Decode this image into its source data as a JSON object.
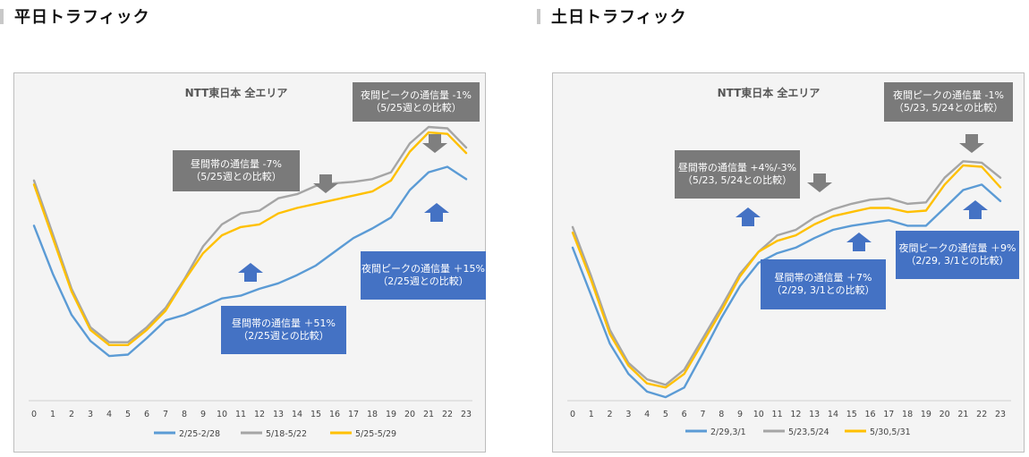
{
  "sections": [
    {
      "title": "平日トラフィック"
    },
    {
      "title": "土日トラフィック"
    }
  ],
  "colors": {
    "blue": "#5b9bd5",
    "gray": "#a5a5a5",
    "yellow": "#ffc000",
    "callout_gray": "#7a7a7a",
    "callout_blue": "#4472c4",
    "arrow_gray": "#7f7f7f",
    "arrow_blue": "#4472c4"
  },
  "chart_data": [
    {
      "type": "line",
      "title": "NTT東日本 全エリア",
      "x": [
        0,
        1,
        2,
        3,
        4,
        5,
        6,
        7,
        8,
        9,
        10,
        11,
        12,
        13,
        14,
        15,
        16,
        17,
        18,
        19,
        20,
        21,
        22,
        23
      ],
      "series": [
        {
          "name": "2/25-2/28",
          "values": [
            78,
            43,
            13,
            -6,
            -17,
            -16,
            -4,
            9,
            13,
            19,
            25,
            27,
            32,
            36,
            42,
            49,
            59,
            69,
            76,
            84,
            104,
            117,
            121,
            112
          ]
        },
        {
          "name": "5/18-5/22",
          "values": [
            111,
            72,
            32,
            4,
            -7,
            -7,
            4,
            18,
            39,
            63,
            79,
            87,
            89,
            98,
            101,
            107,
            109,
            110,
            112,
            117,
            138,
            150,
            149,
            135
          ]
        },
        {
          "name": "5/25-5/29",
          "values": [
            108,
            69,
            30,
            2,
            -9,
            -9,
            2,
            16,
            38,
            58,
            71,
            77,
            79,
            87,
            91,
            94,
            97,
            100,
            103,
            111,
            132,
            146,
            145,
            131
          ]
        }
      ],
      "callouts": [
        {
          "kind": "gray",
          "line1": "夜間ピークの通信量 -1%",
          "line2": "（5/25週との比較）"
        },
        {
          "kind": "gray",
          "line1": "昼間帯の通信量 -7%",
          "line2": "（5/25週との比較）"
        },
        {
          "kind": "blue",
          "line1": "夜間ピークの通信量 ＋15%",
          "line2": "（2/25週との比較）"
        },
        {
          "kind": "blue",
          "line1": "昼間帯の通信量 ＋51%",
          "line2": "（2/25週との比較）"
        }
      ]
    },
    {
      "type": "line",
      "title": "NTT東日本 全エリア",
      "x": [
        0,
        1,
        2,
        3,
        4,
        5,
        6,
        7,
        8,
        9,
        10,
        11,
        12,
        13,
        14,
        15,
        16,
        17,
        18,
        19,
        20,
        21,
        22,
        23
      ],
      "series": [
        {
          "name": "2/29,3/1",
          "values": [
            62,
            27,
            -8,
            -30,
            -43,
            -47,
            -40,
            -15,
            11,
            34,
            51,
            58,
            62,
            69,
            75,
            78,
            80,
            82,
            78,
            78,
            91,
            104,
            108,
            96
          ]
        },
        {
          "name": "5/23,5/24",
          "values": [
            77,
            41,
            2,
            -22,
            -34,
            -38,
            -27,
            -4,
            19,
            43,
            59,
            71,
            75,
            84,
            90,
            94,
            97,
            98,
            94,
            95,
            113,
            125,
            124,
            113
          ]
        },
        {
          "name": "5/30,5/31",
          "values": [
            73,
            38,
            -1,
            -24,
            -37,
            -40,
            -30,
            -7,
            16,
            41,
            59,
            67,
            71,
            79,
            85,
            88,
            91,
            91,
            88,
            89,
            108,
            122,
            121,
            106
          ]
        }
      ],
      "callouts": [
        {
          "kind": "gray",
          "line1": "夜間ピークの通信量 -1%",
          "line2": "（5/23, 5/24との比較）"
        },
        {
          "kind": "gray",
          "line1": "昼間帯の通信量 +4%/-3%",
          "line2": "（5/23, 5/24との比較）"
        },
        {
          "kind": "blue",
          "line1": "夜間ピークの通信量 ＋9%",
          "line2": "（2/29, 3/1との比較）"
        },
        {
          "kind": "blue",
          "line1": "昼間帯の通信量 ＋7%",
          "line2": "（2/29, 3/1との比較）"
        }
      ]
    }
  ]
}
